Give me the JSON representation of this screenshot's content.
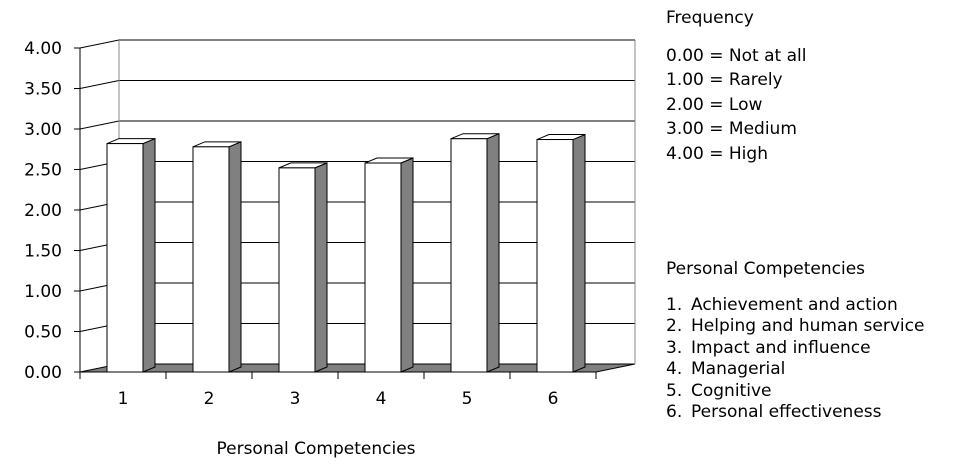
{
  "chart_data": {
    "type": "bar",
    "categories": [
      "1",
      "2",
      "3",
      "4",
      "5",
      "6"
    ],
    "values": [
      2.82,
      2.78,
      2.52,
      2.58,
      2.88,
      2.87
    ],
    "title": "",
    "xlabel": "Personal Competencies",
    "ylabel": "",
    "ylim": [
      0,
      4
    ],
    "yticks": [
      "0.00",
      "0.50",
      "1.00",
      "1.50",
      "2.00",
      "2.50",
      "3.00",
      "3.50",
      "4.00"
    ],
    "grid": true,
    "style": "3d-column",
    "colors": {
      "bar_face": "#ffffff",
      "bar_side": "#808080",
      "floor": "#808080",
      "grid": "#000000"
    }
  },
  "frequency_legend": {
    "title": "Frequency",
    "items": [
      "0.00 = Not at all",
      "1.00 = Rarely",
      "2.00 = Low",
      "3.00 = Medium",
      "4.00 = High"
    ]
  },
  "competencies_legend": {
    "title": "Personal Competencies",
    "items": [
      {
        "num": "1.",
        "label": "Achievement and action"
      },
      {
        "num": "2.",
        "label": "Helping and human service"
      },
      {
        "num": "3.",
        "label": "Impact and influence"
      },
      {
        "num": "4.",
        "label": "Managerial"
      },
      {
        "num": "5.",
        "label": "Cognitive"
      },
      {
        "num": "6.",
        "label": "Personal effectiveness"
      }
    ]
  }
}
